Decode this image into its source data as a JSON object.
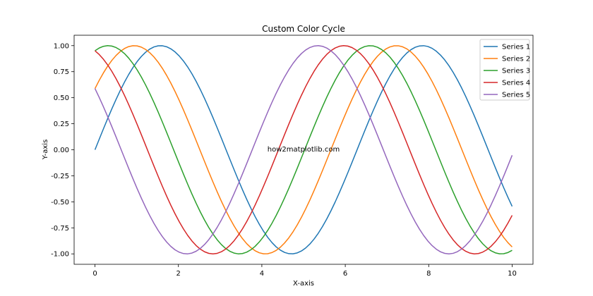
{
  "chart_data": {
    "type": "line",
    "title": "Custom Color Cycle",
    "xlabel": "X-axis",
    "ylabel": "Y-axis",
    "xlim": [
      -0.5,
      10.5
    ],
    "ylim": [
      -1.1,
      1.1
    ],
    "xticks": [
      0,
      2,
      4,
      6,
      8,
      10
    ],
    "xtick_labels": [
      "0",
      "2",
      "4",
      "6",
      "8",
      "10"
    ],
    "yticks": [
      -1.0,
      -0.75,
      -0.5,
      -0.25,
      0.0,
      0.25,
      0.5,
      0.75,
      1.0
    ],
    "ytick_labels": [
      "-1.00",
      "-0.75",
      "-0.50",
      "-0.25",
      "0.00",
      "0.25",
      "0.50",
      "0.75",
      "1.00"
    ],
    "grid": false,
    "legend_position": "top-right",
    "annotation": "how2matplotlib.com",
    "sample_count": 100,
    "x_range": [
      0,
      10
    ],
    "series": [
      {
        "name": "Series 1",
        "function": "sin(x + phase)",
        "phase": 0.0,
        "color": "#1f77b4"
      },
      {
        "name": "Series 2",
        "function": "sin(x + phase)",
        "phase": 0.6283,
        "color": "#ff7f0e"
      },
      {
        "name": "Series 3",
        "function": "sin(x + phase)",
        "phase": 1.2566,
        "color": "#2ca02c"
      },
      {
        "name": "Series 4",
        "function": "sin(x + phase)",
        "phase": 1.885,
        "color": "#d62728"
      },
      {
        "name": "Series 5",
        "function": "sin(x + phase)",
        "phase": 2.5133,
        "color": "#9467bd"
      }
    ]
  }
}
